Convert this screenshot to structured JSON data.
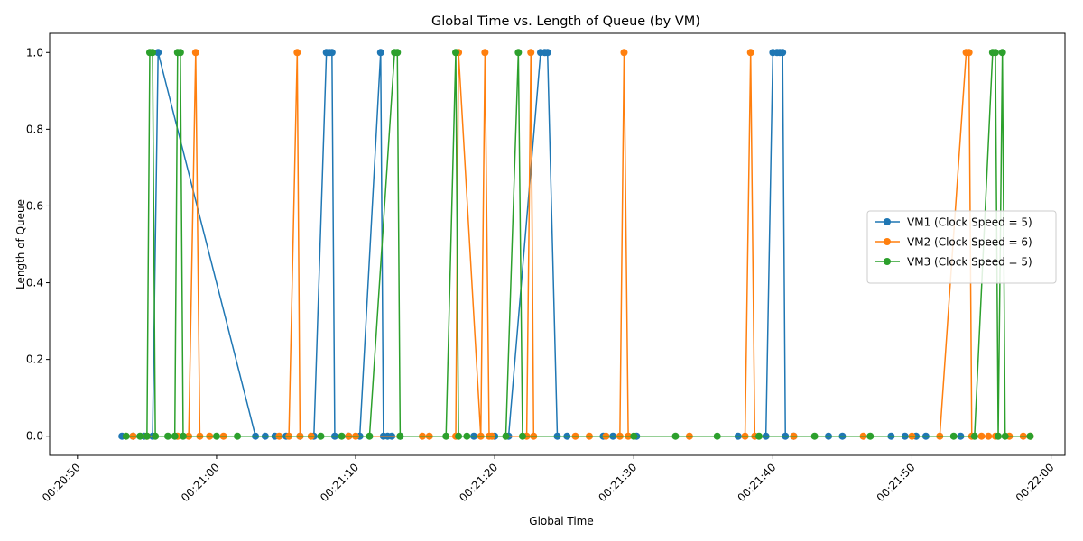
{
  "chart_data": {
    "type": "line",
    "title": "Global Time vs. Length of Queue (by VM)",
    "xlabel": "Global Time",
    "ylabel": "Length of Queue",
    "xlim": [
      "00:20:48",
      "00:22:01"
    ],
    "ylim": [
      -0.05,
      1.05
    ],
    "xticks": [
      "00:20:50",
      "00:21:00",
      "00:21:10",
      "00:21:20",
      "00:21:30",
      "00:21:40",
      "00:21:50",
      "00:22:00"
    ],
    "yticks": [
      "0.0",
      "0.2",
      "0.4",
      "0.6",
      "0.8",
      "1.0"
    ],
    "grid": false,
    "legend_position": "center-right",
    "series": [
      {
        "name": "VM1 (Clock Speed = 5)",
        "color": "#1f77b4",
        "x": [
          "00:20:53.2",
          "00:20:54.0",
          "00:20:54.8",
          "00:20:55.4",
          "00:20:55.8",
          "00:21:02.8",
          "00:21:03.5",
          "00:21:04.2",
          "00:21:05.0",
          "00:21:06.0",
          "00:21:07.0",
          "00:21:07.9",
          "00:21:08.1",
          "00:21:08.3",
          "00:21:08.5",
          "00:21:09.5",
          "00:21:10.3",
          "00:21:11.8",
          "00:21:12.0",
          "00:21:12.3",
          "00:21:12.6",
          "00:21:13.2",
          "00:21:18.5",
          "00:21:20.0",
          "00:21:21.0",
          "00:21:23.3",
          "00:21:23.6",
          "00:21:23.8",
          "00:21:24.5",
          "00:21:25.2",
          "00:21:27.8",
          "00:21:28.5",
          "00:21:30.2",
          "00:21:37.5",
          "00:21:39.5",
          "00:21:40.0",
          "00:21:40.3",
          "00:21:40.5",
          "00:21:40.7",
          "00:21:40.9",
          "00:21:41.5",
          "00:21:44.0",
          "00:21:45.0",
          "00:21:48.5",
          "00:21:49.5",
          "00:21:50.3",
          "00:21:51.0",
          "00:21:53.5"
        ],
        "y": [
          0,
          0,
          0,
          0,
          1,
          0,
          0,
          0,
          0,
          0,
          0,
          1,
          1,
          1,
          0,
          0,
          0,
          1,
          0,
          0,
          0,
          0,
          0,
          0,
          0,
          1,
          1,
          1,
          0,
          0,
          0,
          0,
          0,
          0,
          0,
          1,
          1,
          1,
          1,
          0,
          0,
          0,
          0,
          0,
          0,
          0,
          0,
          0
        ]
      },
      {
        "name": "VM2 (Clock Speed = 6)",
        "color": "#ff7f0e",
        "x": [
          "00:20:54.0",
          "00:20:55.0",
          "00:20:57.2",
          "00:20:58.0",
          "00:20:58.5",
          "00:20:58.8",
          "00:20:59.5",
          "00:21:00.5",
          "00:21:04.5",
          "00:21:05.2",
          "00:21:05.8",
          "00:21:06.0",
          "00:21:06.8",
          "00:21:09.5",
          "00:21:10.0",
          "00:21:14.8",
          "00:21:15.3",
          "00:21:17.2",
          "00:21:17.4",
          "00:21:19.0",
          "00:21:19.3",
          "00:21:19.6",
          "00:21:19.8",
          "00:21:22.3",
          "00:21:22.6",
          "00:21:22.8",
          "00:21:25.8",
          "00:21:26.8",
          "00:21:28.0",
          "00:21:29.0",
          "00:21:29.3",
          "00:21:29.6",
          "00:21:34.0",
          "00:21:38.0",
          "00:21:38.4",
          "00:21:38.7",
          "00:21:41.5",
          "00:21:46.5",
          "00:21:50.0",
          "00:21:52.0",
          "00:21:53.9",
          "00:21:54.1",
          "00:21:54.3",
          "00:21:55.0",
          "00:21:55.5",
          "00:21:56.0",
          "00:21:57.0",
          "00:21:58.0",
          "00:21:58.5"
        ],
        "y": [
          0,
          0,
          0,
          0,
          1,
          0,
          0,
          0,
          0,
          0,
          1,
          0,
          0,
          0,
          0,
          0,
          0,
          0,
          1,
          0,
          1,
          0,
          0,
          0,
          1,
          0,
          0,
          0,
          0,
          0,
          1,
          0,
          0,
          0,
          1,
          0,
          0,
          0,
          0,
          0,
          1,
          1,
          0,
          0,
          0,
          0,
          0,
          0,
          0
        ]
      },
      {
        "name": "VM3 (Clock Speed = 5)",
        "color": "#2ca02c",
        "x": [
          "00:20:53.5",
          "00:20:54.5",
          "00:20:55.0",
          "00:20:55.2",
          "00:20:55.4",
          "00:20:55.6",
          "00:20:56.5",
          "00:20:57.0",
          "00:20:57.2",
          "00:20:57.4",
          "00:20:57.6",
          "00:21:00.0",
          "00:21:01.5",
          "00:21:07.5",
          "00:21:09.0",
          "00:21:11.0",
          "00:21:12.8",
          "00:21:13.0",
          "00:21:13.2",
          "00:21:16.5",
          "00:21:17.2",
          "00:21:17.4",
          "00:21:18.0",
          "00:21:20.8",
          "00:21:21.7",
          "00:21:22.0",
          "00:21:30.0",
          "00:21:33.0",
          "00:21:36.0",
          "00:21:39.0",
          "00:21:43.0",
          "00:21:47.0",
          "00:21:53.0",
          "00:21:54.5",
          "00:21:55.8",
          "00:21:56.0",
          "00:21:56.2",
          "00:21:56.5",
          "00:21:56.7",
          "00:21:58.5"
        ],
        "y": [
          0,
          0,
          0,
          1,
          1,
          0,
          0,
          0,
          1,
          1,
          0,
          0,
          0,
          0,
          0,
          0,
          1,
          1,
          0,
          0,
          1,
          0,
          0,
          0,
          1,
          0,
          0,
          0,
          0,
          0,
          0,
          0,
          0,
          0,
          1,
          1,
          0,
          1,
          0,
          0
        ]
      }
    ]
  }
}
